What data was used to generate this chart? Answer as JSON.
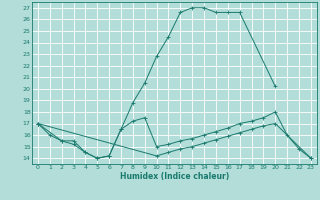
{
  "xlabel": "Humidex (Indice chaleur)",
  "xlim": [
    -0.5,
    23.5
  ],
  "ylim": [
    13.5,
    27.5
  ],
  "xticks": [
    0,
    1,
    2,
    3,
    4,
    5,
    6,
    7,
    8,
    9,
    10,
    11,
    12,
    13,
    14,
    15,
    16,
    17,
    18,
    19,
    20,
    21,
    22,
    23
  ],
  "yticks": [
    14,
    15,
    16,
    17,
    18,
    19,
    20,
    21,
    22,
    23,
    24,
    25,
    26,
    27
  ],
  "bg_color": "#b2ddd8",
  "line_color": "#1a7a6e",
  "grid_color": "#ffffff",
  "line1_x": [
    0,
    1,
    2,
    3,
    4,
    5,
    6,
    7,
    8,
    9,
    10,
    11,
    12,
    13,
    14,
    15,
    16,
    17,
    20
  ],
  "line1_y": [
    17.0,
    16.0,
    15.5,
    15.5,
    14.5,
    14.0,
    14.2,
    16.5,
    18.8,
    20.5,
    22.8,
    24.5,
    26.6,
    27.0,
    27.0,
    26.6,
    26.6,
    26.6,
    20.2
  ],
  "line2_x": [
    0,
    2,
    3,
    4,
    5,
    6,
    7,
    8,
    9,
    10,
    11,
    12,
    13,
    14,
    15,
    16,
    17,
    18,
    19,
    20,
    21,
    22,
    23
  ],
  "line2_y": [
    17.0,
    15.5,
    15.2,
    14.5,
    14.0,
    14.2,
    16.5,
    17.2,
    17.5,
    15.0,
    15.2,
    15.5,
    15.7,
    16.0,
    16.3,
    16.6,
    17.0,
    17.2,
    17.5,
    18.0,
    16.0,
    14.8,
    14.0
  ],
  "line3_x": [
    0,
    10,
    11,
    12,
    13,
    14,
    15,
    16,
    17,
    18,
    19,
    20,
    23
  ],
  "line3_y": [
    17.0,
    14.2,
    14.5,
    14.8,
    15.0,
    15.3,
    15.6,
    15.9,
    16.2,
    16.5,
    16.8,
    17.0,
    14.0
  ]
}
